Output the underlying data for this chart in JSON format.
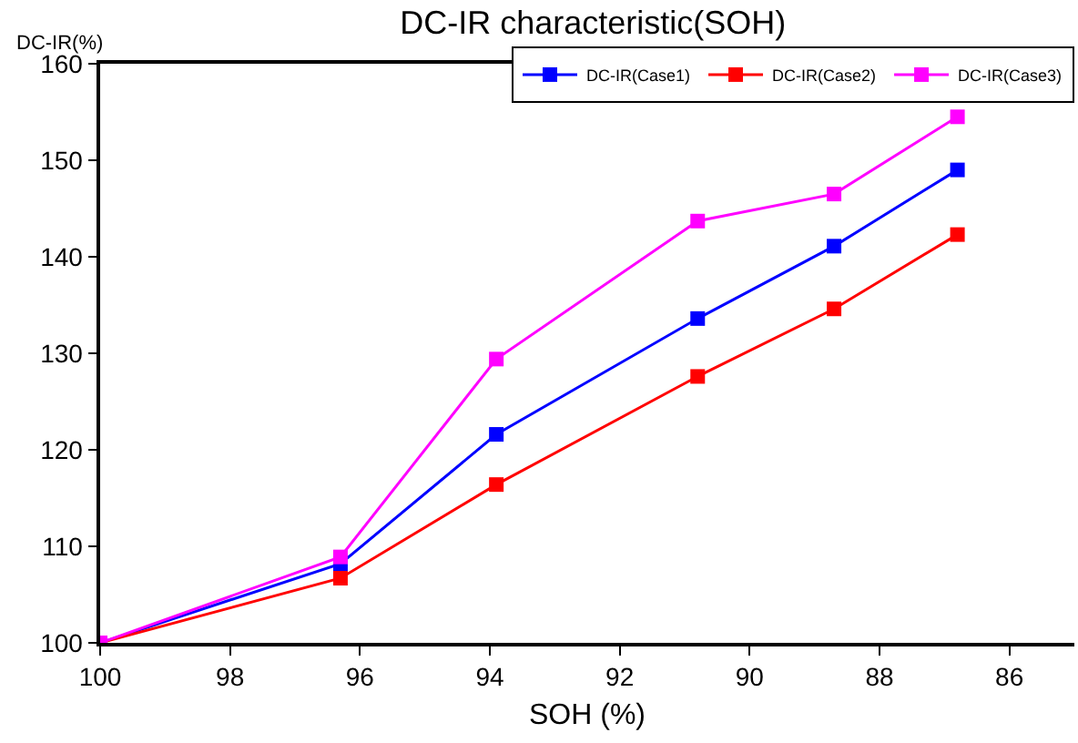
{
  "chart_data": {
    "type": "line",
    "title": "DC-IR characteristic(SOH)",
    "xlabel": "SOH (%)",
    "ylabel": "DC-IR(%)",
    "x": [
      100,
      96.3,
      93.9,
      90.8,
      88.7,
      86.8
    ],
    "series": [
      {
        "name": "DC-IR(Case1)",
        "color": "#0000ff",
        "values": [
          100,
          108.2,
          121.6,
          133.6,
          141.1,
          149.0
        ]
      },
      {
        "name": "DC-IR(Case2)",
        "color": "#ff0000",
        "values": [
          100,
          106.7,
          116.4,
          127.6,
          134.6,
          142.3
        ]
      },
      {
        "name": "DC-IR(Case3)",
        "color": "#ff00ff",
        "values": [
          100,
          108.9,
          129.4,
          143.7,
          146.5,
          154.5
        ]
      }
    ],
    "xlim": [
      100,
      85
    ],
    "xticks": [
      100,
      98,
      96,
      94,
      92,
      90,
      88,
      86
    ],
    "ylim": [
      100,
      160
    ],
    "yticks": [
      100,
      110,
      120,
      130,
      140,
      150,
      160
    ],
    "legend": "top right",
    "marker": "square",
    "line_style": "solid"
  }
}
